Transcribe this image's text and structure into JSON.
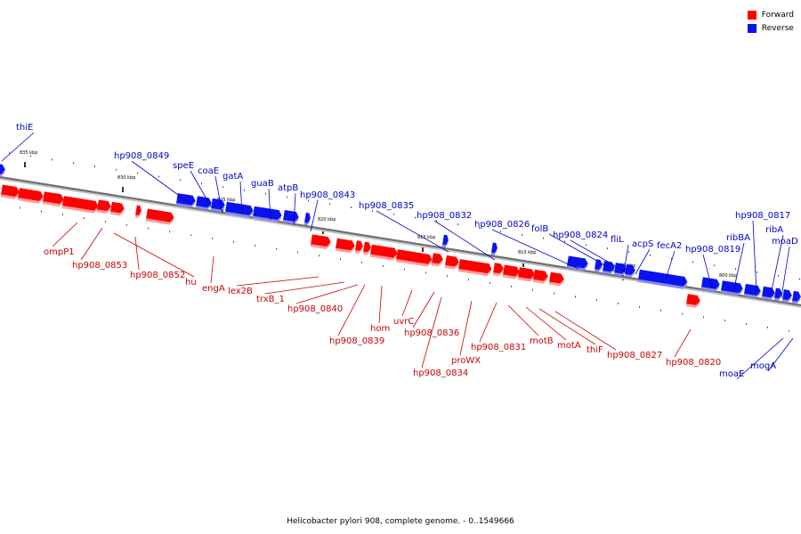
{
  "legend": {
    "forward_label": "Forward",
    "reverse_label": "Reverse"
  },
  "colors": {
    "forward": "#ff0000",
    "forward_shadow": "#ff9a9a",
    "forward_label": "#c80000",
    "reverse": "#0a12f0",
    "reverse_shadow": "#8a8ae6",
    "reverse_label": "#0000c8",
    "backbone": "#6f6f6f",
    "backbone_shadow": "#c8c8c8"
  },
  "caption": "Helicobacter pylori 908, complete genome. - 0..1549666",
  "map": {
    "type": "linear-genome-map",
    "scale_ticks": [
      "835 kbp",
      "830 kbp",
      "825 kbp",
      "820 kbp",
      "815 kbp",
      "810 kbp",
      "805 kbp",
      "800 kbp"
    ],
    "reverse_genes": [
      "thiE",
      "hp908_0849",
      "speE",
      "coaE",
      "gatA",
      "guaB",
      "atpB",
      "hp908_0843",
      "hp908_0835",
      "hp908_0832",
      "hp908_0826",
      "folB",
      "hp908_0824",
      "fliL",
      "acpS",
      "fecA2",
      "hp908_0819",
      "ribBA",
      "hp908_0817",
      "ribA",
      "moaD",
      "moaE",
      "mogA"
    ],
    "forward_genes": [
      "ompP1",
      "hp908_0853",
      "hp908_0852",
      "hu",
      "engA",
      "lex2B",
      "trxB_1",
      "hp908_0840",
      "hp908_0839",
      "hom",
      "uvrC",
      "hp908_0836",
      "hp908_0834",
      "proWX",
      "hp908_0831",
      "motB",
      "motA",
      "thiF",
      "hp908_0827",
      "hp908_0820"
    ]
  }
}
